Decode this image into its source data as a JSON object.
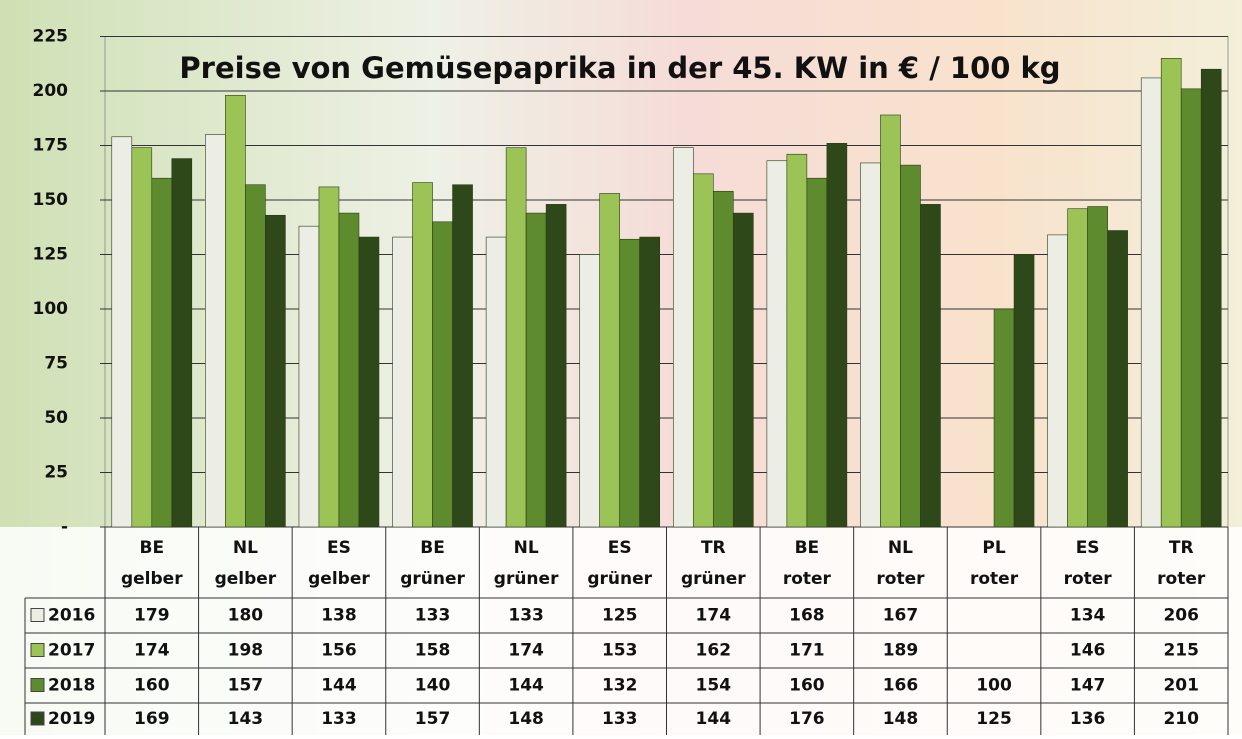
{
  "chart_data": {
    "type": "bar",
    "title": "Preise von Gemüsepaprika in der 45. KW in € / 100 kg",
    "categories": [
      [
        "BE",
        "gelber"
      ],
      [
        "NL",
        "gelber"
      ],
      [
        "ES",
        "gelber"
      ],
      [
        "BE",
        "grüner"
      ],
      [
        "NL",
        "grüner"
      ],
      [
        "ES",
        "grüner"
      ],
      [
        "TR",
        "grüner"
      ],
      [
        "BE",
        "roter"
      ],
      [
        "NL",
        "roter"
      ],
      [
        "PL",
        "roter"
      ],
      [
        "ES",
        "roter"
      ],
      [
        "TR",
        "roter"
      ]
    ],
    "series": [
      {
        "name": "2016",
        "color": "#eceee6",
        "values": [
          179,
          180,
          138,
          133,
          133,
          125,
          174,
          168,
          167,
          null,
          134,
          206
        ]
      },
      {
        "name": "2017",
        "color": "#9cc356",
        "values": [
          174,
          198,
          156,
          158,
          174,
          153,
          162,
          171,
          189,
          null,
          146,
          215
        ]
      },
      {
        "name": "2018",
        "color": "#5f8b2f",
        "values": [
          160,
          157,
          144,
          140,
          144,
          132,
          154,
          160,
          166,
          100,
          147,
          201
        ]
      },
      {
        "name": "2019",
        "color": "#2e4819",
        "values": [
          169,
          143,
          133,
          157,
          148,
          133,
          144,
          176,
          148,
          125,
          136,
          210
        ]
      }
    ],
    "ylim": [
      0,
      225
    ],
    "yticks": [
      {
        "value": 0,
        "label": "-"
      },
      25,
      50,
      75,
      100,
      125,
      150,
      175,
      200,
      225
    ],
    "grid": true
  }
}
